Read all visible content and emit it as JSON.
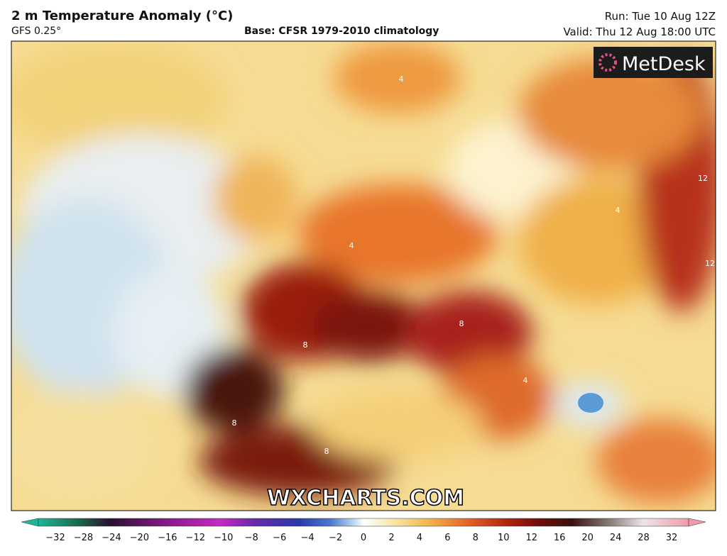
{
  "header": {
    "title": "2 m Temperature Anomaly (°C)",
    "model": "GFS 0.25°",
    "base": "Base: CFSR 1979-2010 climatology",
    "run": "Run: Tue 10 Aug 12Z",
    "valid": "Valid: Thu 12 Aug 18:00 UTC"
  },
  "map": {
    "logo": "MetDesk",
    "watermark": "WXCHARTS.COM",
    "contour_labels": [
      "4",
      "4",
      "8",
      "8",
      "8",
      "4",
      "12",
      "12",
      "8",
      "4"
    ]
  },
  "colorbar": {
    "ticks": [
      "−32",
      "−28",
      "−24",
      "−20",
      "−16",
      "−12",
      "−10",
      "−8",
      "−6",
      "−4",
      "−2",
      "0",
      "2",
      "4",
      "6",
      "8",
      "10",
      "12",
      "16",
      "20",
      "24",
      "28",
      "32"
    ]
  }
}
